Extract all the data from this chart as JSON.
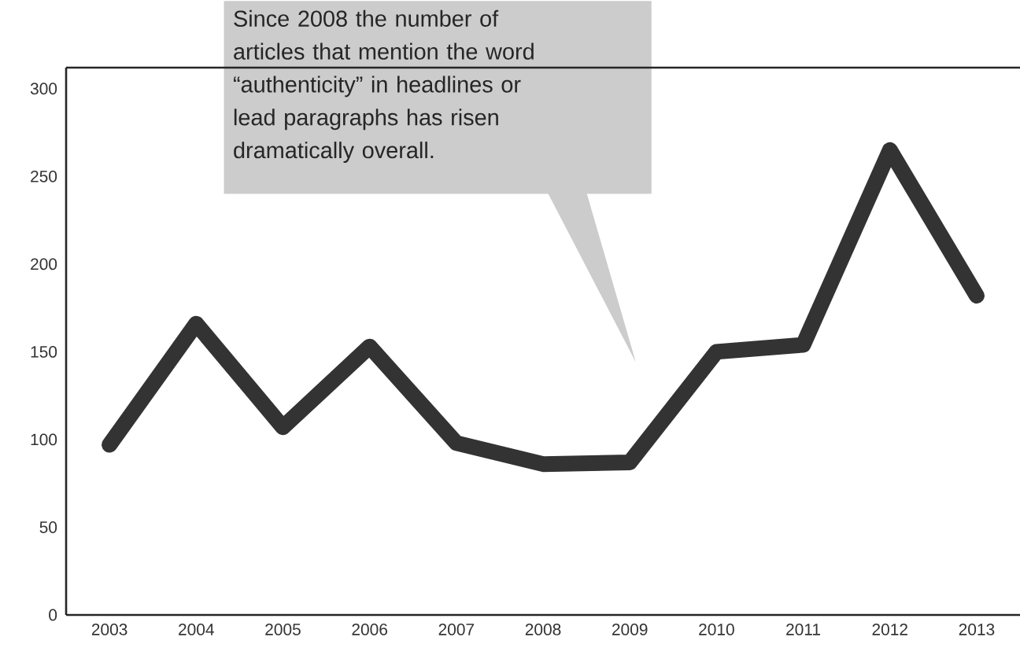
{
  "chart_data": {
    "type": "line",
    "categories": [
      "2003",
      "2004",
      "2005",
      "2006",
      "2007",
      "2008",
      "2009",
      "2010",
      "2011",
      "2012",
      "2013"
    ],
    "series": [
      {
        "color": "#333333",
        "values": [
          97,
          166,
          107,
          153,
          98,
          86,
          87,
          150,
          154,
          265,
          182
        ]
      }
    ],
    "ylim": [
      0,
      312
    ],
    "yticks": [
      0,
      50,
      100,
      150,
      200,
      250,
      300
    ],
    "annotations": [
      "Since 2008 the number of articles that mention the word “authenticity” in headlines or lead paragraphs has risen dramatically overall."
    ],
    "grid": false,
    "marker": "none",
    "line_style": "solid"
  }
}
